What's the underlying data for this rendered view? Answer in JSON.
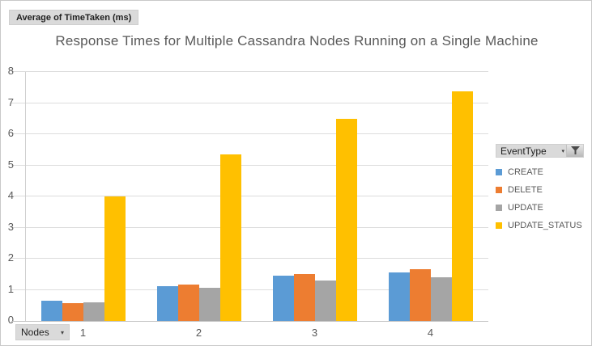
{
  "field_buttons": {
    "value_field": "Average of TimeTaken (ms)",
    "axis_field": "Nodes",
    "legend_field": "EventType"
  },
  "icons": {
    "dropdown_arrow": "▾",
    "filter_funnel": "funnel-icon"
  },
  "chart_data": {
    "type": "bar",
    "title": "Response Times for Multiple Cassandra Nodes Running on a Single Machine",
    "xlabel": "Nodes",
    "ylabel": "Average of TimeTaken (ms)",
    "categories": [
      "1",
      "2",
      "3",
      "4"
    ],
    "series": [
      {
        "name": "CREATE",
        "color": "#5B9BD5",
        "values": [
          0.64,
          1.11,
          1.46,
          1.56
        ]
      },
      {
        "name": "DELETE",
        "color": "#ED7D31",
        "values": [
          0.56,
          1.17,
          1.5,
          1.65
        ]
      },
      {
        "name": "UPDATE",
        "color": "#A5A5A5",
        "values": [
          0.6,
          1.06,
          1.3,
          1.41
        ]
      },
      {
        "name": "UPDATE_STATUS",
        "color": "#FFC000",
        "values": [
          4.0,
          5.35,
          6.5,
          7.37
        ]
      }
    ],
    "ylim": [
      0,
      8
    ],
    "ytick_step": 1,
    "grid": true,
    "legend_position": "right",
    "legend_title": "EventType"
  },
  "colors": {
    "title_text": "#595959",
    "axis_text": "#595959",
    "gridline": "#dcdcdc",
    "axis_line": "#c4c4c4",
    "button_bg": "#dadada",
    "border": "#c9c9c9"
  }
}
